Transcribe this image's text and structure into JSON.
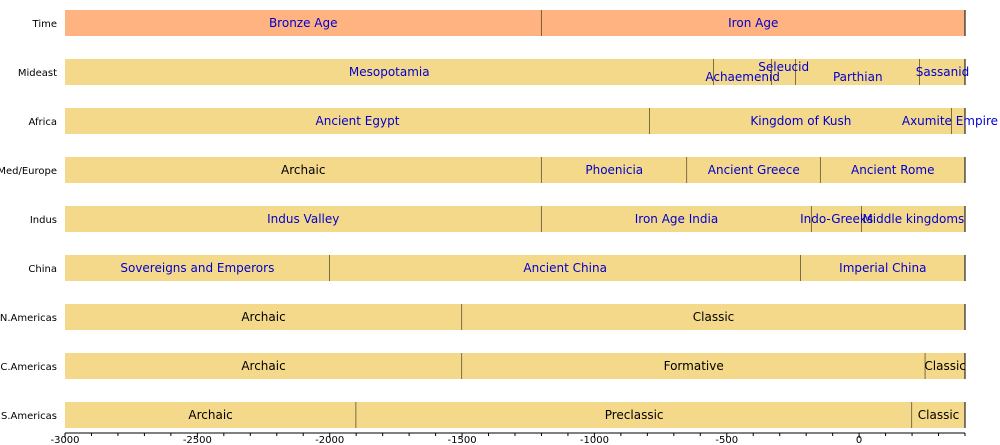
{
  "chart_data": {
    "type": "bar",
    "title": "",
    "xlabel": "",
    "ylabel": "",
    "xlim": [
      -3000,
      400
    ],
    "x_ticks": [
      -3000,
      -2500,
      -2000,
      -1500,
      -1000,
      -500,
      0
    ],
    "colors": {
      "time_bar": "#ffb380",
      "period_bar": "#f5d98b",
      "link_text": "#0000cc",
      "plain_text": "#000000",
      "divider": "#000000",
      "axis": "#000000"
    },
    "rows": [
      {
        "label": "Time",
        "kind": "time",
        "periods": [
          {
            "name": "Bronze Age",
            "start": -3000,
            "end": -1200,
            "link": true
          },
          {
            "name": "Iron Age",
            "start": -1200,
            "end": 400,
            "link": true
          }
        ]
      },
      {
        "label": "Mideast",
        "kind": "period",
        "periods": [
          {
            "name": "Mesopotamia",
            "start": -3000,
            "end": -550,
            "link": true
          },
          {
            "name": "Achaemenid",
            "start": -550,
            "end": -330,
            "link": true,
            "label_offset": "low"
          },
          {
            "name": "Seleucid",
            "start": -330,
            "end": -240,
            "link": true,
            "label_offset": "high"
          },
          {
            "name": "Parthian",
            "start": -240,
            "end": 230,
            "link": true,
            "label_offset": "low"
          },
          {
            "name": "Sassanid",
            "start": 230,
            "end": 400,
            "link": true
          }
        ]
      },
      {
        "label": "Africa",
        "kind": "period",
        "periods": [
          {
            "name": "Ancient Egypt",
            "start": -3000,
            "end": -790,
            "link": true
          },
          {
            "name": "Kingdom of Kush",
            "start": -790,
            "end": 350,
            "link": true
          },
          {
            "name": "Axumite Empire",
            "start": 350,
            "end": 400,
            "link": true
          }
        ]
      },
      {
        "label": "Med/Europe",
        "kind": "period",
        "periods": [
          {
            "name": "Archaic",
            "start": -3000,
            "end": -1200,
            "link": false
          },
          {
            "name": "Phoenicia",
            "start": -1200,
            "end": -650,
            "link": true
          },
          {
            "name": "Ancient Greece",
            "start": -650,
            "end": -146,
            "link": true
          },
          {
            "name": "Ancient Rome",
            "start": -146,
            "end": 400,
            "link": true
          }
        ]
      },
      {
        "label": "Indus",
        "kind": "period",
        "periods": [
          {
            "name": "Indus Valley",
            "start": -3000,
            "end": -1200,
            "link": true
          },
          {
            "name": "Iron Age India",
            "start": -1200,
            "end": -180,
            "link": true
          },
          {
            "name": "Indo-Greeks",
            "start": -180,
            "end": 10,
            "link": true
          },
          {
            "name": "Middle kingdoms",
            "start": 10,
            "end": 400,
            "link": true
          }
        ]
      },
      {
        "label": "China",
        "kind": "period",
        "periods": [
          {
            "name": "Sovereigns and Emperors",
            "start": -3000,
            "end": -2000,
            "link": true
          },
          {
            "name": "Ancient China",
            "start": -2000,
            "end": -221,
            "link": true
          },
          {
            "name": "Imperial China",
            "start": -221,
            "end": 400,
            "link": true
          }
        ]
      },
      {
        "label": "N.Americas",
        "kind": "period",
        "periods": [
          {
            "name": "Archaic",
            "start": -3000,
            "end": -1500,
            "link": false
          },
          {
            "name": "Classic",
            "start": -1500,
            "end": 400,
            "link": false
          }
        ]
      },
      {
        "label": "C.Americas",
        "kind": "period",
        "periods": [
          {
            "name": "Archaic",
            "start": -3000,
            "end": -1500,
            "link": false
          },
          {
            "name": "Formative",
            "start": -1500,
            "end": 250,
            "link": false
          },
          {
            "name": "Classic",
            "start": 250,
            "end": 400,
            "link": false
          }
        ]
      },
      {
        "label": "S.Americas",
        "kind": "period",
        "periods": [
          {
            "name": "Archaic",
            "start": -3000,
            "end": -1900,
            "link": false
          },
          {
            "name": "Preclassic",
            "start": -1900,
            "end": 200,
            "link": false
          },
          {
            "name": "Classic",
            "start": 200,
            "end": 400,
            "link": false
          }
        ]
      }
    ]
  }
}
